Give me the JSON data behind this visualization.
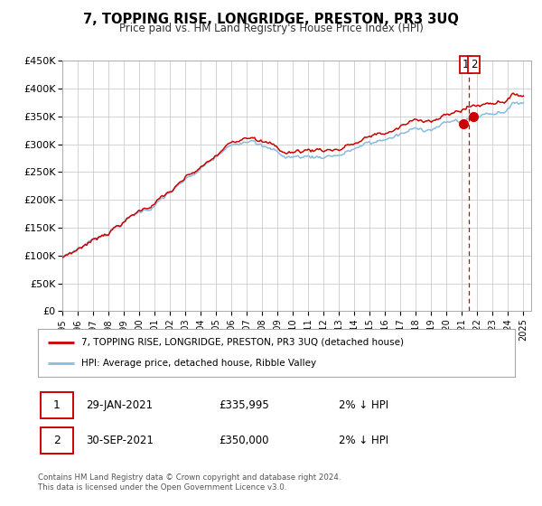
{
  "title": "7, TOPPING RISE, LONGRIDGE, PRESTON, PR3 3UQ",
  "subtitle": "Price paid vs. HM Land Registry's House Price Index (HPI)",
  "ylabel_ticks": [
    "£0",
    "£50K",
    "£100K",
    "£150K",
    "£200K",
    "£250K",
    "£300K",
    "£350K",
    "£400K",
    "£450K"
  ],
  "ytick_values": [
    0,
    50000,
    100000,
    150000,
    200000,
    250000,
    300000,
    350000,
    400000,
    450000
  ],
  "xlim_start": 1995.0,
  "xlim_end": 2025.5,
  "ylim_min": 0,
  "ylim_max": 450000,
  "hpi_color": "#88bbdd",
  "price_color": "#cc0000",
  "marker1_date": 2021.08,
  "marker1_value": 335995,
  "marker2_date": 2021.75,
  "marker2_value": 350000,
  "vline_x": 2021.42,
  "legend_label1": "7, TOPPING RISE, LONGRIDGE, PRESTON, PR3 3UQ (detached house)",
  "legend_label2": "HPI: Average price, detached house, Ribble Valley",
  "footer": "Contains HM Land Registry data © Crown copyright and database right 2024.\nThis data is licensed under the Open Government Licence v3.0.",
  "background_color": "#ffffff",
  "grid_color": "#cccccc"
}
